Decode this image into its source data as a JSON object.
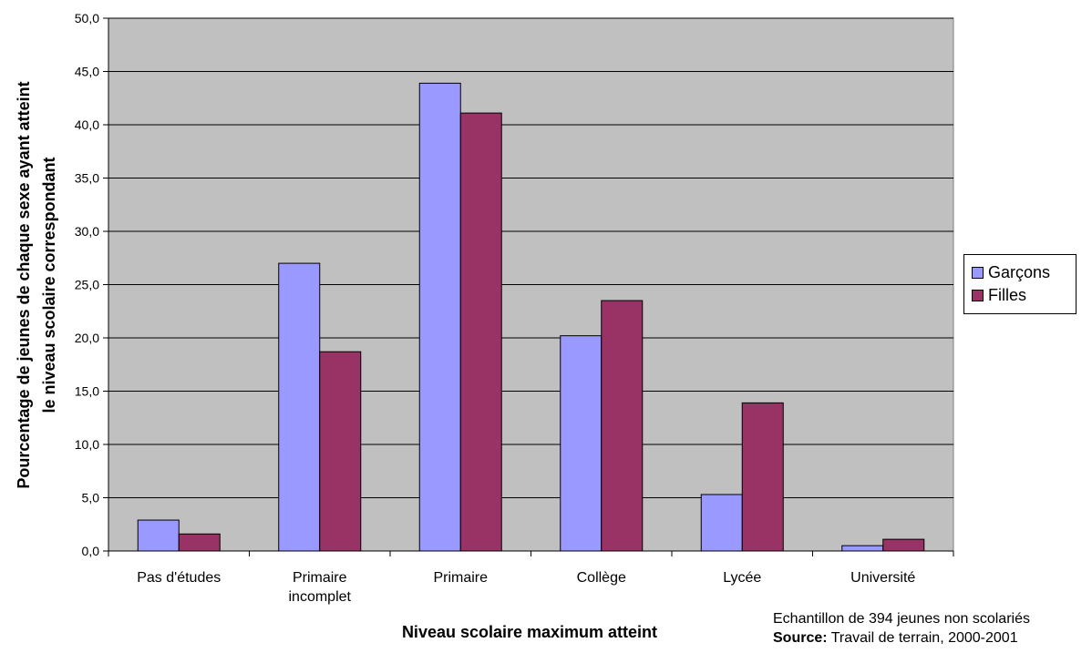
{
  "chart_data": {
    "type": "bar",
    "categories": [
      [
        "Pas d'études"
      ],
      [
        "Primaire",
        "incomplet"
      ],
      [
        "Primaire"
      ],
      [
        "Collège"
      ],
      [
        "Lycée"
      ],
      [
        "Université"
      ]
    ],
    "series": [
      {
        "name": "Garçons",
        "color": "#9999FF",
        "values": [
          2.9,
          27.0,
          43.9,
          20.2,
          5.3,
          0.5
        ]
      },
      {
        "name": "Filles",
        "color": "#993366",
        "values": [
          1.6,
          18.7,
          41.1,
          23.5,
          13.9,
          1.1
        ]
      }
    ],
    "xlabel": "Niveau scolaire maximum atteint",
    "ylabel": [
      "Pourcentage de jeunes de chaque sexe ayant atteint",
      "le niveau scolaire correspondant"
    ],
    "ylim": [
      0,
      50
    ],
    "yticks": [
      0,
      5,
      10,
      15,
      20,
      25,
      30,
      35,
      40,
      45,
      50
    ],
    "ytick_labels": [
      "0,0",
      "5,0",
      "10,0",
      "15,0",
      "20,0",
      "25,0",
      "30,0",
      "35,0",
      "40,0",
      "45,0",
      "50,0"
    ],
    "grid": true,
    "plot_background": "#C0C0C0",
    "legend_position": "right"
  },
  "notes": {
    "sample": "Echantillon de 394 jeunes non scolariés",
    "source_label": "Source:",
    "source_text": " Travail de terrain, 2000-2001"
  }
}
